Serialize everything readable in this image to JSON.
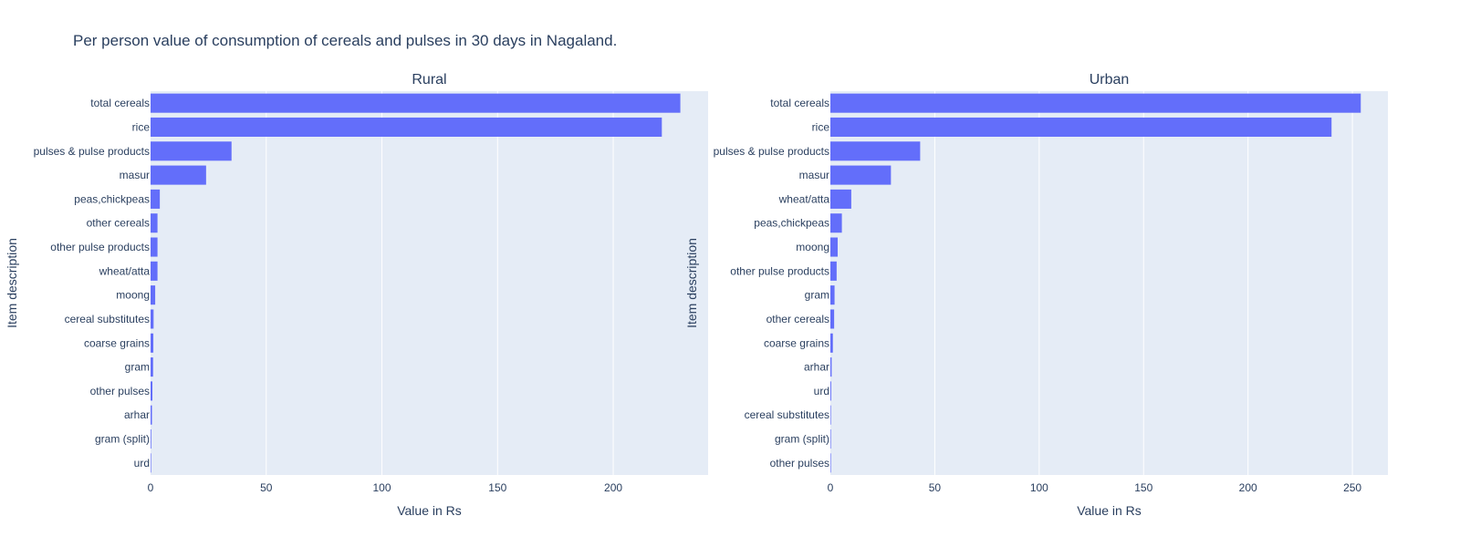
{
  "title": "Per person value of consumption of cereals and pulses in 30 days in Nagaland.",
  "colors": {
    "bar": "#636efa",
    "plot_bg": "#e5ecf6",
    "grid": "#ffffff",
    "text": "#2a3f5f"
  },
  "chart_data": [
    {
      "type": "bar",
      "orientation": "horizontal",
      "subplot_title": "Rural",
      "xlabel": "Value in Rs",
      "ylabel": "Item description",
      "xlim": [
        0,
        241
      ],
      "xticks": [
        0,
        50,
        100,
        150,
        200
      ],
      "grid": true,
      "categories": [
        "total cereals",
        "rice",
        "pulses & pulse products",
        "masur",
        "peas,chickpeas",
        "other cereals",
        "other pulse products",
        "wheat/atta",
        "moong",
        "cereal substitutes",
        "coarse grains",
        "gram",
        "other pulses",
        "arhar",
        "gram (split)",
        "urd"
      ],
      "values": [
        229,
        221,
        35,
        24,
        4,
        3,
        3,
        3,
        2,
        1.3,
        1.2,
        1.1,
        0.8,
        0.6,
        0.3,
        0.1
      ]
    },
    {
      "type": "bar",
      "orientation": "horizontal",
      "subplot_title": "Urban",
      "xlabel": "Value in Rs",
      "ylabel": "Item description",
      "xlim": [
        0,
        267
      ],
      "xticks": [
        0,
        50,
        100,
        150,
        200,
        250
      ],
      "grid": true,
      "categories": [
        "total cereals",
        "rice",
        "pulses & pulse products",
        "masur",
        "wheat/atta",
        "peas,chickpeas",
        "moong",
        "other pulse products",
        "gram",
        "other cereals",
        "coarse grains",
        "arhar",
        "urd",
        "cereal substitutes",
        "gram (split)",
        "other pulses"
      ],
      "values": [
        254,
        240,
        43,
        29,
        10,
        5.5,
        3.5,
        3,
        2,
        1.8,
        1.2,
        0.6,
        0.4,
        0.2,
        0.2,
        0.1
      ]
    }
  ]
}
